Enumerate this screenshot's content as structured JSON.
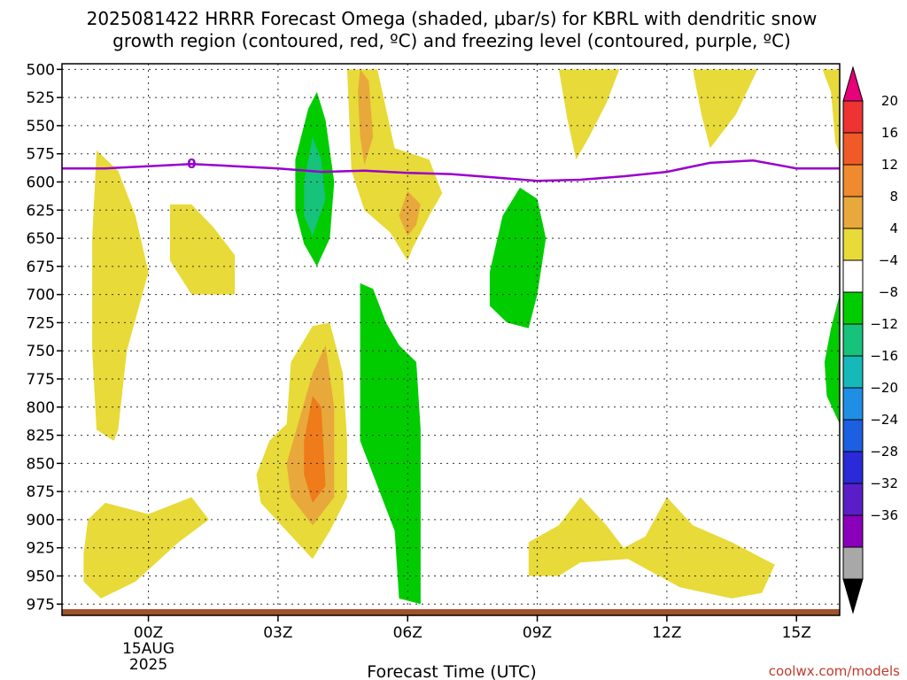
{
  "title_line1": "2025081422 HRRR Forecast Omega (shaded, μbar/s) for KBRL with dendritic snow",
  "title_line2": "growth region (contoured, red, ºC) and freezing level (contoured, purple, ºC)",
  "credit": "coolwx.com/models",
  "chart_data": {
    "type": "heatmap",
    "xlabel": "Forecast Time (UTC)",
    "ylabel": "",
    "x_unit": "hours from 2025-08-15 00Z",
    "xlim": [
      -2,
      16
    ],
    "ylim": [
      985,
      495
    ],
    "x_ticks": [
      {
        "x": 0,
        "lines": [
          "00Z",
          "15AUG",
          "2025"
        ]
      },
      {
        "x": 3,
        "lines": [
          "03Z"
        ]
      },
      {
        "x": 6,
        "lines": [
          "06Z"
        ]
      },
      {
        "x": 9,
        "lines": [
          "09Z"
        ]
      },
      {
        "x": 12,
        "lines": [
          "12Z"
        ]
      },
      {
        "x": 15,
        "lines": [
          "15Z"
        ]
      }
    ],
    "y_ticks": [
      500,
      525,
      550,
      575,
      600,
      625,
      650,
      675,
      700,
      725,
      750,
      775,
      800,
      825,
      850,
      875,
      900,
      925,
      950,
      975
    ],
    "grid": true,
    "colorbar": {
      "ticks": [
        {
          "value": 20,
          "label": "20"
        },
        {
          "value": 16,
          "label": "16"
        },
        {
          "value": 12,
          "label": "12"
        },
        {
          "value": 8,
          "label": "8"
        },
        {
          "value": 4,
          "label": "4"
        },
        {
          "value": -4,
          "label": "−4"
        },
        {
          "value": -8,
          "label": "−8"
        },
        {
          "value": -12,
          "label": "−12"
        },
        {
          "value": -16,
          "label": "−16"
        },
        {
          "value": -20,
          "label": "−20"
        },
        {
          "value": -24,
          "label": "−24"
        },
        {
          "value": -28,
          "label": "−28"
        },
        {
          "value": -32,
          "label": "−32"
        },
        {
          "value": -36,
          "label": "−36"
        }
      ],
      "bands": [
        {
          "color": "#e6007a"
        },
        {
          "color": "#ee3333"
        },
        {
          "color": "#f05a28"
        },
        {
          "color": "#ef8a2e"
        },
        {
          "color": "#e8a83c"
        },
        {
          "color": "#e8da38"
        },
        {
          "color": "#ffffff"
        },
        {
          "color": "#00cc00"
        },
        {
          "color": "#17c27a"
        },
        {
          "color": "#16b9b9"
        },
        {
          "color": "#1f8fe6"
        },
        {
          "color": "#1c5fe0"
        },
        {
          "color": "#2a2ad8"
        },
        {
          "color": "#5a1ec8"
        },
        {
          "color": "#8a00bb"
        },
        {
          "color": "#a8a8a8"
        },
        {
          "color": "#000000"
        }
      ]
    },
    "freezing_level": {
      "color": "#9900cc",
      "label": "0",
      "label_x": 1,
      "points": [
        [
          -2,
          588
        ],
        [
          -1,
          588
        ],
        [
          0,
          586
        ],
        [
          1,
          584
        ],
        [
          2,
          586
        ],
        [
          3,
          588
        ],
        [
          4,
          591
        ],
        [
          5,
          590
        ],
        [
          6,
          592
        ],
        [
          7,
          593
        ],
        [
          8,
          596
        ],
        [
          9,
          599
        ],
        [
          10,
          598
        ],
        [
          11,
          595
        ],
        [
          12,
          591
        ],
        [
          13,
          583
        ],
        [
          14,
          581
        ],
        [
          15,
          588
        ],
        [
          16,
          588
        ]
      ]
    },
    "regions": [
      {
        "name": "y1",
        "color": "#e8da38",
        "points": [
          [
            -1.2,
            572
          ],
          [
            -0.7,
            590
          ],
          [
            -0.3,
            630
          ],
          [
            0,
            680
          ],
          [
            -0.5,
            750
          ],
          [
            -0.7,
            820
          ],
          [
            -0.8,
            830
          ],
          [
            -1.2,
            820
          ],
          [
            -1.3,
            750
          ],
          [
            -1.3,
            650
          ],
          [
            -1.2,
            572
          ]
        ]
      },
      {
        "name": "y2",
        "color": "#e8da38",
        "points": [
          [
            0.5,
            620
          ],
          [
            1,
            620
          ],
          [
            1.5,
            640
          ],
          [
            2,
            665
          ],
          [
            2,
            700
          ],
          [
            1,
            700
          ],
          [
            0.5,
            670
          ],
          [
            0.5,
            620
          ]
        ]
      },
      {
        "name": "y3",
        "color": "#e8da38",
        "points": [
          [
            4.6,
            500
          ],
          [
            5.3,
            500
          ],
          [
            5.7,
            570
          ],
          [
            6.5,
            580
          ],
          [
            6.8,
            610
          ],
          [
            6.5,
            630
          ],
          [
            6.1,
            660
          ],
          [
            6,
            670
          ],
          [
            5.6,
            645
          ],
          [
            5.0,
            625
          ],
          [
            4.7,
            590
          ],
          [
            4.6,
            500
          ]
        ]
      },
      {
        "name": "o3",
        "color": "#e8a83c",
        "points": [
          [
            4.9,
            500
          ],
          [
            5.1,
            510
          ],
          [
            5.2,
            560
          ],
          [
            5.0,
            585
          ],
          [
            4.9,
            560
          ],
          [
            4.85,
            520
          ],
          [
            4.9,
            500
          ]
        ]
      },
      {
        "name": "o3b",
        "color": "#e8a83c",
        "points": [
          [
            6.0,
            608
          ],
          [
            6.3,
            620
          ],
          [
            6.2,
            638
          ],
          [
            6.0,
            648
          ],
          [
            5.8,
            630
          ],
          [
            6.0,
            608
          ]
        ]
      },
      {
        "name": "y4",
        "color": "#e8da38",
        "points": [
          [
            2.5,
            860
          ],
          [
            2.8,
            830
          ],
          [
            3.2,
            815
          ],
          [
            3.3,
            760
          ],
          [
            3.8,
            728
          ],
          [
            4.2,
            725
          ],
          [
            4.5,
            770
          ],
          [
            4.6,
            830
          ],
          [
            4.6,
            880
          ],
          [
            4.2,
            910
          ],
          [
            3.8,
            935
          ],
          [
            3.2,
            910
          ],
          [
            2.6,
            885
          ],
          [
            2.5,
            860
          ]
        ]
      },
      {
        "name": "o4",
        "color": "#e8a83c",
        "points": [
          [
            3.2,
            850
          ],
          [
            3.5,
            810
          ],
          [
            3.8,
            770
          ],
          [
            4.1,
            745
          ],
          [
            4.3,
            800
          ],
          [
            4.3,
            880
          ],
          [
            3.8,
            905
          ],
          [
            3.3,
            880
          ],
          [
            3.2,
            850
          ]
        ]
      },
      {
        "name": "r4",
        "color": "#ef7b1a",
        "points": [
          [
            3.6,
            830
          ],
          [
            3.8,
            790
          ],
          [
            4.0,
            800
          ],
          [
            4.1,
            870
          ],
          [
            3.8,
            885
          ],
          [
            3.6,
            860
          ],
          [
            3.6,
            830
          ]
        ]
      },
      {
        "name": "y5",
        "color": "#e8da38",
        "points": [
          [
            -1.5,
            930
          ],
          [
            -1.4,
            900
          ],
          [
            -1,
            885
          ],
          [
            0,
            895
          ],
          [
            1,
            880
          ],
          [
            1.4,
            900
          ],
          [
            0.7,
            920
          ],
          [
            -0.3,
            955
          ],
          [
            -1.1,
            970
          ],
          [
            -1.5,
            955
          ],
          [
            -1.5,
            930
          ]
        ]
      },
      {
        "name": "y6",
        "color": "#e8da38",
        "points": [
          [
            8.8,
            920
          ],
          [
            9.5,
            905
          ],
          [
            10,
            880
          ],
          [
            10.6,
            905
          ],
          [
            11,
            925
          ],
          [
            11.5,
            915
          ],
          [
            12,
            880
          ],
          [
            12.6,
            905
          ],
          [
            13.5,
            920
          ],
          [
            14.5,
            940
          ],
          [
            14.2,
            965
          ],
          [
            13.5,
            970
          ],
          [
            12.3,
            960
          ],
          [
            11.1,
            935
          ],
          [
            10,
            938
          ],
          [
            9.5,
            950
          ],
          [
            8.8,
            950
          ],
          [
            8.8,
            920
          ]
        ]
      },
      {
        "name": "y7",
        "color": "#e8da38",
        "points": [
          [
            9.5,
            500
          ],
          [
            10.9,
            500
          ],
          [
            10.6,
            530
          ],
          [
            10.2,
            560
          ],
          [
            9.9,
            580
          ],
          [
            9.7,
            545
          ],
          [
            9.5,
            500
          ]
        ]
      },
      {
        "name": "y8",
        "color": "#e8da38",
        "points": [
          [
            12.6,
            500
          ],
          [
            14.1,
            500
          ],
          [
            13.6,
            540
          ],
          [
            13.0,
            570
          ],
          [
            12.8,
            540
          ],
          [
            12.6,
            500
          ]
        ]
      },
      {
        "name": "y9",
        "color": "#e8da38",
        "points": [
          [
            15.6,
            500
          ],
          [
            16,
            500
          ],
          [
            16,
            575
          ],
          [
            15.9,
            565
          ],
          [
            15.8,
            520
          ],
          [
            15.6,
            500
          ]
        ]
      },
      {
        "name": "g1",
        "color": "#00cc00",
        "points": [
          [
            3.4,
            580
          ],
          [
            3.7,
            535
          ],
          [
            3.9,
            520
          ],
          [
            4.1,
            545
          ],
          [
            4.3,
            600
          ],
          [
            4.2,
            650
          ],
          [
            3.9,
            675
          ],
          [
            3.6,
            655
          ],
          [
            3.4,
            625
          ],
          [
            3.4,
            580
          ]
        ]
      },
      {
        "name": "t1",
        "color": "#17c27a",
        "points": [
          [
            3.6,
            600
          ],
          [
            3.8,
            560
          ],
          [
            4.0,
            580
          ],
          [
            4.1,
            615
          ],
          [
            3.8,
            648
          ],
          [
            3.6,
            630
          ],
          [
            3.6,
            600
          ]
        ]
      },
      {
        "name": "g2",
        "color": "#00cc00",
        "points": [
          [
            4.9,
            690
          ],
          [
            5.2,
            695
          ],
          [
            5.5,
            725
          ],
          [
            5.8,
            745
          ],
          [
            6.2,
            760
          ],
          [
            6.3,
            820
          ],
          [
            6.3,
            870
          ],
          [
            6.3,
            940
          ],
          [
            6.3,
            975
          ],
          [
            5.8,
            970
          ],
          [
            5.7,
            910
          ],
          [
            5.3,
            870
          ],
          [
            4.9,
            830
          ],
          [
            4.9,
            760
          ],
          [
            4.9,
            690
          ]
        ]
      },
      {
        "name": "g3",
        "color": "#00cc00",
        "points": [
          [
            7.9,
            680
          ],
          [
            8.2,
            630
          ],
          [
            8.6,
            605
          ],
          [
            9.0,
            615
          ],
          [
            9.2,
            650
          ],
          [
            9.0,
            700
          ],
          [
            8.8,
            730
          ],
          [
            8.3,
            725
          ],
          [
            7.9,
            710
          ],
          [
            7.9,
            680
          ]
        ]
      },
      {
        "name": "g4",
        "color": "#00cc00",
        "points": [
          [
            16,
            700
          ],
          [
            15.8,
            730
          ],
          [
            15.65,
            760
          ],
          [
            15.7,
            790
          ],
          [
            16,
            815
          ],
          [
            16,
            700
          ]
        ]
      }
    ]
  }
}
